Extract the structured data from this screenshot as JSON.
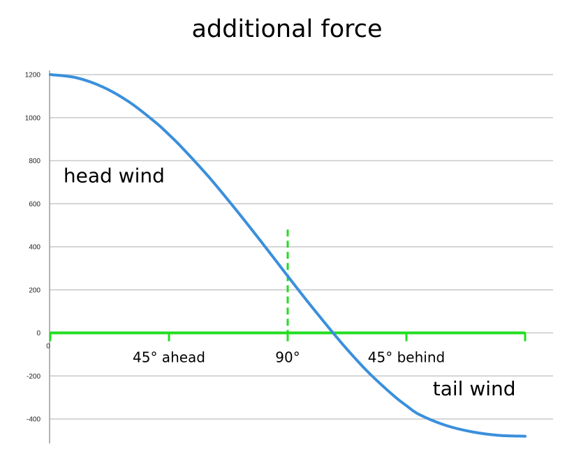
{
  "chart_data": {
    "type": "line",
    "title": "additional force",
    "xlabel": "",
    "ylabel": "",
    "ylim": [
      -400,
      1200
    ],
    "yticks": [
      1200,
      1000,
      800,
      600,
      400,
      200,
      0,
      -200,
      -400
    ],
    "xlim": [
      0,
      180
    ],
    "x_origin_label": "0",
    "grid": true,
    "series": [
      {
        "color": "#3a8fdc",
        "x": [
          0,
          10,
          20,
          30,
          40,
          45,
          50,
          60,
          70,
          80,
          90,
          95,
          100,
          110,
          120,
          130,
          135,
          140,
          150,
          160,
          170,
          180
        ],
        "values": [
          1200,
          1185,
          1142,
          1072,
          977,
          921,
          860,
          726,
          578,
          423,
          264,
          185,
          108,
          -41,
          -176,
          -290,
          -338,
          -380,
          -430,
          -460,
          -476,
          -480
        ]
      }
    ],
    "x_markers": [
      {
        "x": 0,
        "label": ""
      },
      {
        "x": 45,
        "label": "45° ahead"
      },
      {
        "x": 90,
        "label": "90°"
      },
      {
        "x": 135,
        "label": "45° behind"
      },
      {
        "x": 180,
        "label": ""
      }
    ],
    "reference_color": "#22dd22",
    "vertical_reference": {
      "x": 90,
      "y_top": 480
    },
    "annotations": [
      {
        "text": "head wind",
        "x": 5,
        "y": 700,
        "size": 28
      },
      {
        "text": "tail wind",
        "x": 145,
        "y": -290,
        "size": 28
      }
    ]
  }
}
